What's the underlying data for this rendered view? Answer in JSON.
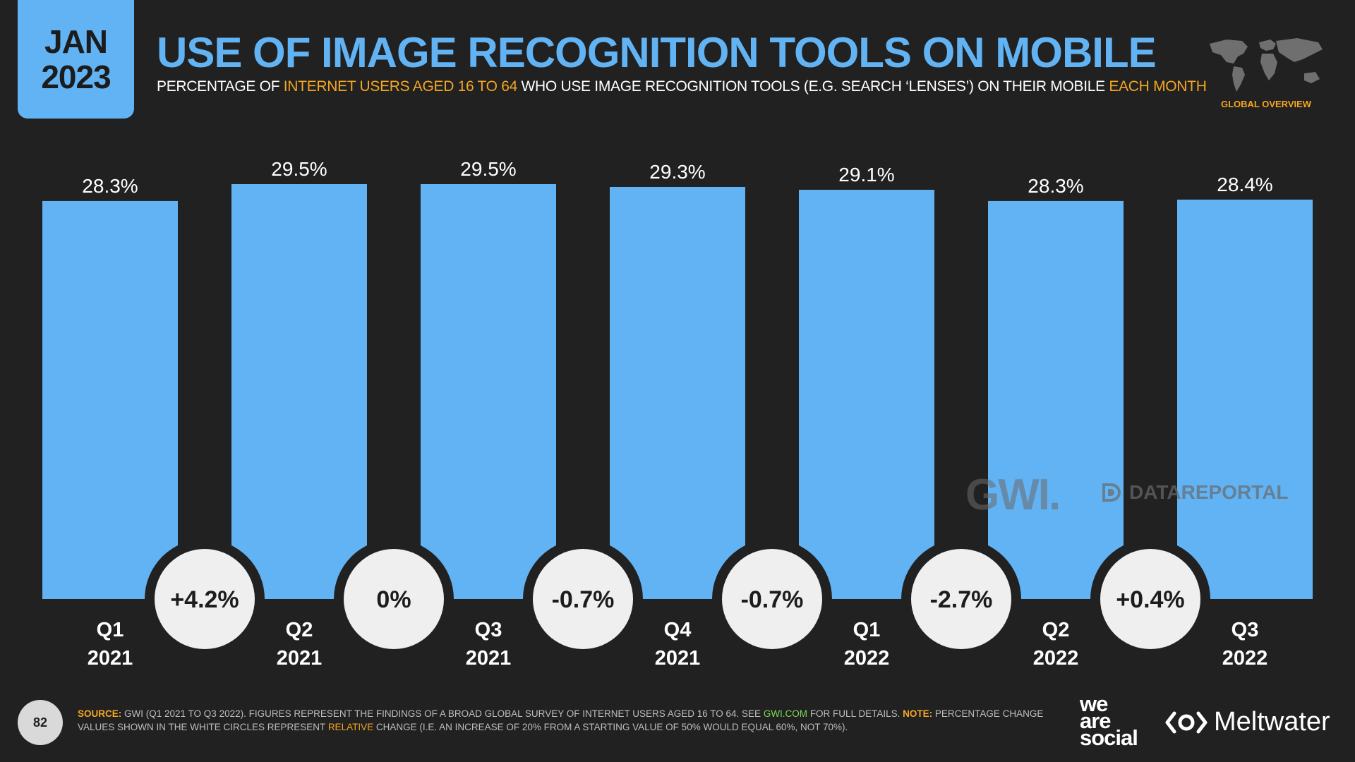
{
  "header": {
    "month": "JAN",
    "year": "2023",
    "title": "USE OF IMAGE RECOGNITION TOOLS ON MOBILE",
    "subtitle_parts": [
      "PERCENTAGE OF ",
      "INTERNET USERS AGED 16 TO 64",
      " WHO USE IMAGE RECOGNITION TOOLS (E.G. SEARCH ‘LENSES’) ON THEIR MOBILE ",
      "EACH MONTH"
    ],
    "region_label": "GLOBAL OVERVIEW"
  },
  "colors": {
    "accent": "#62b3f4",
    "highlight": "#f5a623",
    "background": "#212121",
    "circle": "#efefef"
  },
  "chart_data": {
    "type": "bar",
    "categories": [
      {
        "q": "Q1",
        "y": "2021"
      },
      {
        "q": "Q2",
        "y": "2021"
      },
      {
        "q": "Q3",
        "y": "2021"
      },
      {
        "q": "Q4",
        "y": "2021"
      },
      {
        "q": "Q1",
        "y": "2022"
      },
      {
        "q": "Q2",
        "y": "2022"
      },
      {
        "q": "Q3",
        "y": "2022"
      }
    ],
    "values": [
      28.3,
      29.5,
      29.5,
      29.3,
      29.1,
      28.3,
      28.4
    ],
    "value_labels": [
      "28.3%",
      "29.5%",
      "29.5%",
      "29.3%",
      "29.1%",
      "28.3%",
      "28.4%"
    ],
    "changes": [
      "+4.2%",
      "0%",
      "-0.7%",
      "-0.7%",
      "-2.7%",
      "+0.4%"
    ],
    "ylim": [
      0,
      29.5
    ]
  },
  "watermarks": {
    "gwi": "GWI.",
    "datareportal": "DATAREPORTAL"
  },
  "footer": {
    "page_number": "82",
    "source_label": "SOURCE:",
    "source_text_1": " GWI (Q1 2021 TO Q3 2022). FIGURES REPRESENT THE FINDINGS OF A BROAD GLOBAL SURVEY OF INTERNET USERS AGED 16 TO 64. SEE ",
    "source_link": "GWI.COM",
    "source_text_2": " FOR FULL DETAILS. ",
    "note_label": "NOTE:",
    "note_text_1": " PERCENTAGE CHANGE VALUES SHOWN IN THE WHITE CIRCLES REPRESENT ",
    "note_relative": "RELATIVE",
    "note_text_2": " CHANGE (I.E. AN INCREASE OF 20% FROM A STARTING VALUE OF 50% WOULD EQUAL 60%, NOT 70%).",
    "logo_was": [
      "we",
      "are",
      "social"
    ],
    "logo_meltwater": "Meltwater"
  }
}
